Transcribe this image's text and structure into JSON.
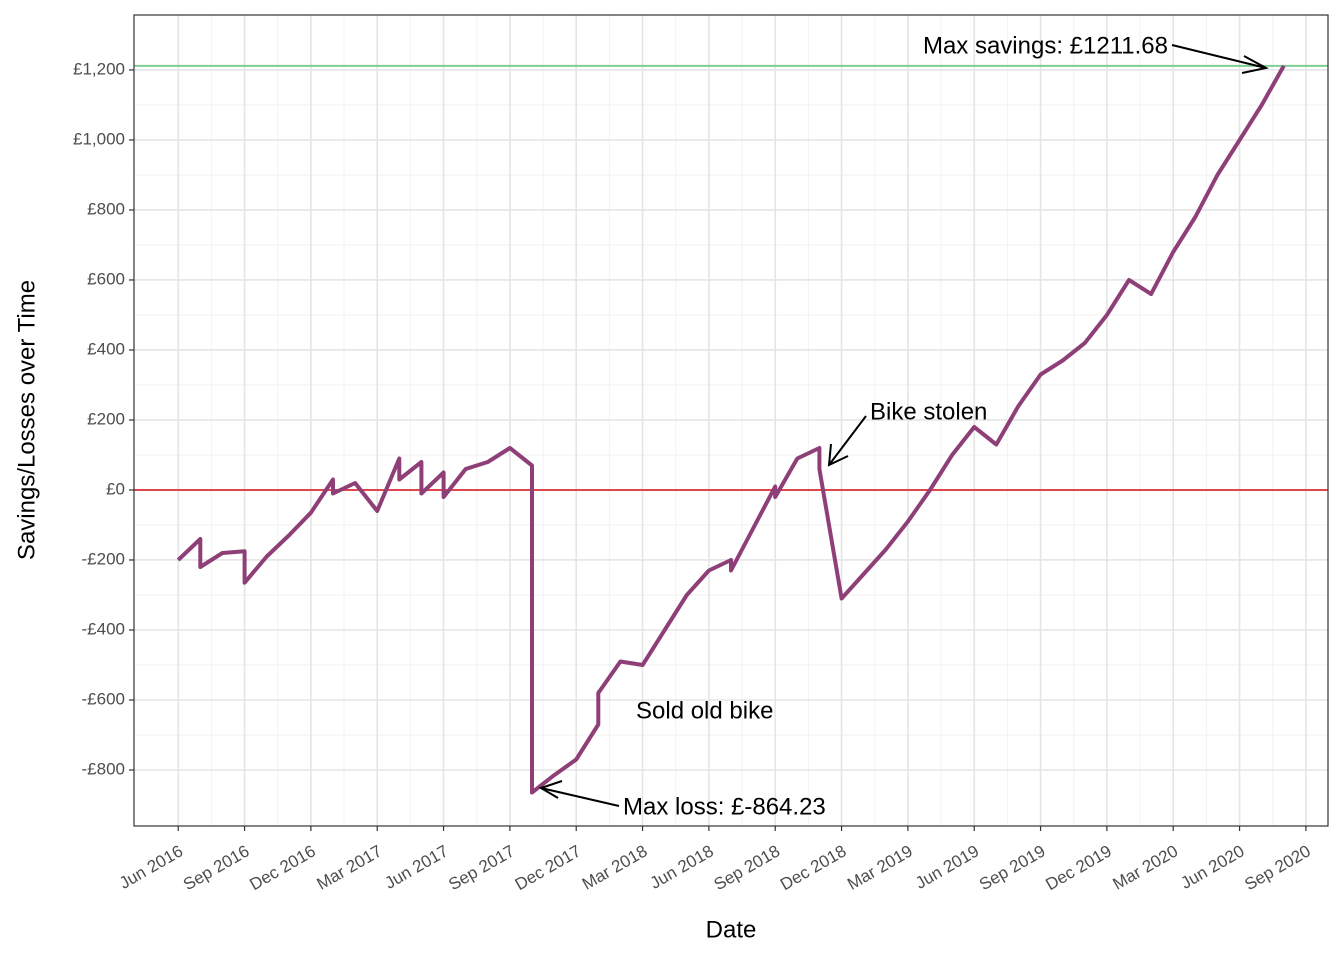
{
  "chart_data": {
    "type": "line",
    "x_label": "Date",
    "y_label": "Savings/Losses over Time",
    "xlim": [
      "2016-04",
      "2020-10"
    ],
    "ylim": [
      -960,
      1357
    ],
    "xticks": [
      {
        "value": "2016-06",
        "label": "Jun 2016"
      },
      {
        "value": "2016-09",
        "label": "Sep 2016"
      },
      {
        "value": "2016-12",
        "label": "Dec 2016"
      },
      {
        "value": "2017-03",
        "label": "Mar 2017"
      },
      {
        "value": "2017-06",
        "label": "Jun 2017"
      },
      {
        "value": "2017-09",
        "label": "Sep 2017"
      },
      {
        "value": "2017-12",
        "label": "Dec 2017"
      },
      {
        "value": "2018-03",
        "label": "Mar 2018"
      },
      {
        "value": "2018-06",
        "label": "Jun 2018"
      },
      {
        "value": "2018-09",
        "label": "Sep 2018"
      },
      {
        "value": "2018-12",
        "label": "Dec 2018"
      },
      {
        "value": "2019-03",
        "label": "Mar 2019"
      },
      {
        "value": "2019-06",
        "label": "Jun 2019"
      },
      {
        "value": "2019-09",
        "label": "Sep 2019"
      },
      {
        "value": "2019-12",
        "label": "Dec 2019"
      },
      {
        "value": "2020-03",
        "label": "Mar 2020"
      },
      {
        "value": "2020-06",
        "label": "Jun 2020"
      },
      {
        "value": "2020-09",
        "label": "Sep 2020"
      }
    ],
    "yticks": [
      {
        "value": -800,
        "label": "-£800"
      },
      {
        "value": -600,
        "label": "-£600"
      },
      {
        "value": -400,
        "label": "-£400"
      },
      {
        "value": -200,
        "label": "-£200"
      },
      {
        "value": 0,
        "label": "£0"
      },
      {
        "value": 200,
        "label": "£200"
      },
      {
        "value": 400,
        "label": "£400"
      },
      {
        "value": 600,
        "label": "£600"
      },
      {
        "value": 800,
        "label": "£800"
      },
      {
        "value": 1000,
        "label": "£1,000"
      },
      {
        "value": 1200,
        "label": "£1,200"
      }
    ],
    "grid": true,
    "hlines": [
      {
        "value": 0,
        "color": "#e0474c"
      },
      {
        "value": 1211.68,
        "color": "#7fcf94"
      }
    ],
    "series": [
      {
        "name": "Savings",
        "color": "#8e3f78",
        "x": [
          "2016-06",
          "2016-07",
          "2016-07",
          "2016-08",
          "2016-09",
          "2016-09",
          "2016-10",
          "2016-11",
          "2016-12",
          "2017-01",
          "2017-01",
          "2017-02",
          "2017-03",
          "2017-04",
          "2017-04",
          "2017-05",
          "2017-05",
          "2017-06",
          "2017-06",
          "2017-07",
          "2017-08",
          "2017-09",
          "2017-10",
          "2017-10",
          "2017-11",
          "2017-12",
          "2018-01",
          "2018-01",
          "2018-02",
          "2018-03",
          "2018-04",
          "2018-05",
          "2018-06",
          "2018-07",
          "2018-07",
          "2018-08",
          "2018-09",
          "2018-09",
          "2018-10",
          "2018-11",
          "2018-11",
          "2018-12",
          "2019-01",
          "2019-02",
          "2019-03",
          "2019-04",
          "2019-05",
          "2019-06",
          "2019-07",
          "2019-08",
          "2019-09",
          "2019-10",
          "2019-11",
          "2019-12",
          "2020-01",
          "2020-02",
          "2020-03",
          "2020-04",
          "2020-05",
          "2020-06",
          "2020-07",
          "2020-08"
        ],
        "values": [
          -200,
          -140,
          -220,
          -180,
          -175,
          -265,
          -190,
          -130,
          -65,
          30,
          -10,
          20,
          -60,
          90,
          30,
          80,
          -10,
          50,
          -20,
          60,
          80,
          120,
          70,
          -864.23,
          -815,
          -770,
          -670,
          -580,
          -490,
          -500,
          -400,
          -300,
          -230,
          -200,
          -230,
          -110,
          10,
          -20,
          90,
          120,
          60,
          -310,
          -240,
          -170,
          -90,
          0,
          100,
          180,
          130,
          240,
          330,
          370,
          420,
          500,
          600,
          560,
          680,
          780,
          900,
          1000,
          1100,
          1211.68
        ]
      }
    ],
    "annotations": [
      "Max savings: £1211.68",
      "Bike stolen",
      "Sold old bike",
      "Max loss: £-864.23"
    ]
  }
}
